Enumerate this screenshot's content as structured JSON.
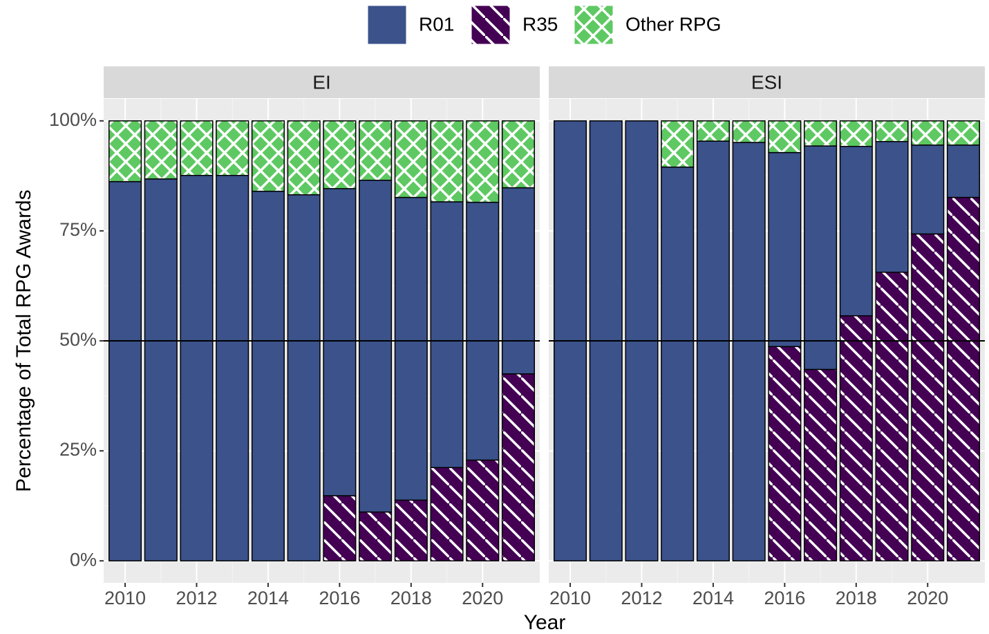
{
  "chart_data": [
    {
      "type": "bar",
      "stacked": true,
      "facet": "EI",
      "xlabel": "Year",
      "ylabel": "Percentage of Total RPG Awards",
      "x": [
        2010,
        2011,
        2012,
        2013,
        2014,
        2015,
        2016,
        2017,
        2018,
        2019,
        2020,
        2021
      ],
      "xlim": [
        2009.4,
        2021.6
      ],
      "xticks": [
        2010,
        2012,
        2014,
        2016,
        2018,
        2020
      ],
      "ylim": [
        -5,
        105
      ],
      "yticks": [
        {
          "value": 0,
          "label": "0%"
        },
        {
          "value": 25,
          "label": "25%"
        },
        {
          "value": 50,
          "label": "50%"
        },
        {
          "value": 75,
          "label": "75%"
        },
        {
          "value": 100,
          "label": "100%"
        }
      ],
      "hline": 50,
      "grid": true,
      "legend": "top",
      "stack_order": [
        1,
        0,
        2
      ],
      "series": [
        {
          "name": "R01",
          "color": "#3b528b",
          "pattern": "none",
          "values": [
            86.2,
            86.8,
            87.6,
            87.6,
            84.0,
            83.2,
            69.8,
            75.4,
            68.8,
            60.4,
            58.6,
            42.3
          ]
        },
        {
          "name": "R35",
          "color": "#440154",
          "pattern": "stripe",
          "values": [
            0,
            0,
            0,
            0,
            0,
            0,
            14.8,
            11.1,
            13.8,
            21.2,
            22.9,
            42.5
          ]
        },
        {
          "name": "Other RPG",
          "color": "#5ec962",
          "pattern": "crosshatch",
          "values": [
            13.8,
            13.2,
            12.4,
            12.4,
            16.0,
            16.8,
            15.4,
            13.5,
            17.4,
            18.4,
            18.5,
            15.2
          ]
        }
      ]
    },
    {
      "type": "bar",
      "stacked": true,
      "facet": "ESI",
      "x": [
        2010,
        2011,
        2012,
        2013,
        2014,
        2015,
        2016,
        2017,
        2018,
        2019,
        2020,
        2021
      ],
      "xlim": [
        2009.4,
        2021.6
      ],
      "xticks": [
        2010,
        2012,
        2014,
        2016,
        2018,
        2020
      ],
      "ylim": [
        -5,
        105
      ],
      "yticks": [
        0,
        25,
        50,
        75,
        100
      ],
      "hline": 50,
      "grid": true,
      "stack_order": [
        1,
        0,
        2
      ],
      "series": [
        {
          "name": "R01",
          "color": "#3b528b",
          "pattern": "none",
          "values": [
            100,
            100,
            100,
            89.5,
            95.4,
            95.1,
            44.1,
            50.8,
            38.5,
            29.7,
            20.2,
            11.9
          ]
        },
        {
          "name": "R35",
          "color": "#440154",
          "pattern": "stripe",
          "values": [
            0,
            0,
            0,
            0,
            0,
            0,
            48.7,
            43.5,
            55.7,
            65.6,
            74.3,
            82.6
          ]
        },
        {
          "name": "Other RPG",
          "color": "#5ec962",
          "pattern": "crosshatch",
          "values": [
            0,
            0,
            0,
            10.5,
            4.6,
            4.9,
            7.2,
            5.7,
            5.8,
            4.7,
            5.5,
            5.5
          ]
        }
      ]
    }
  ]
}
